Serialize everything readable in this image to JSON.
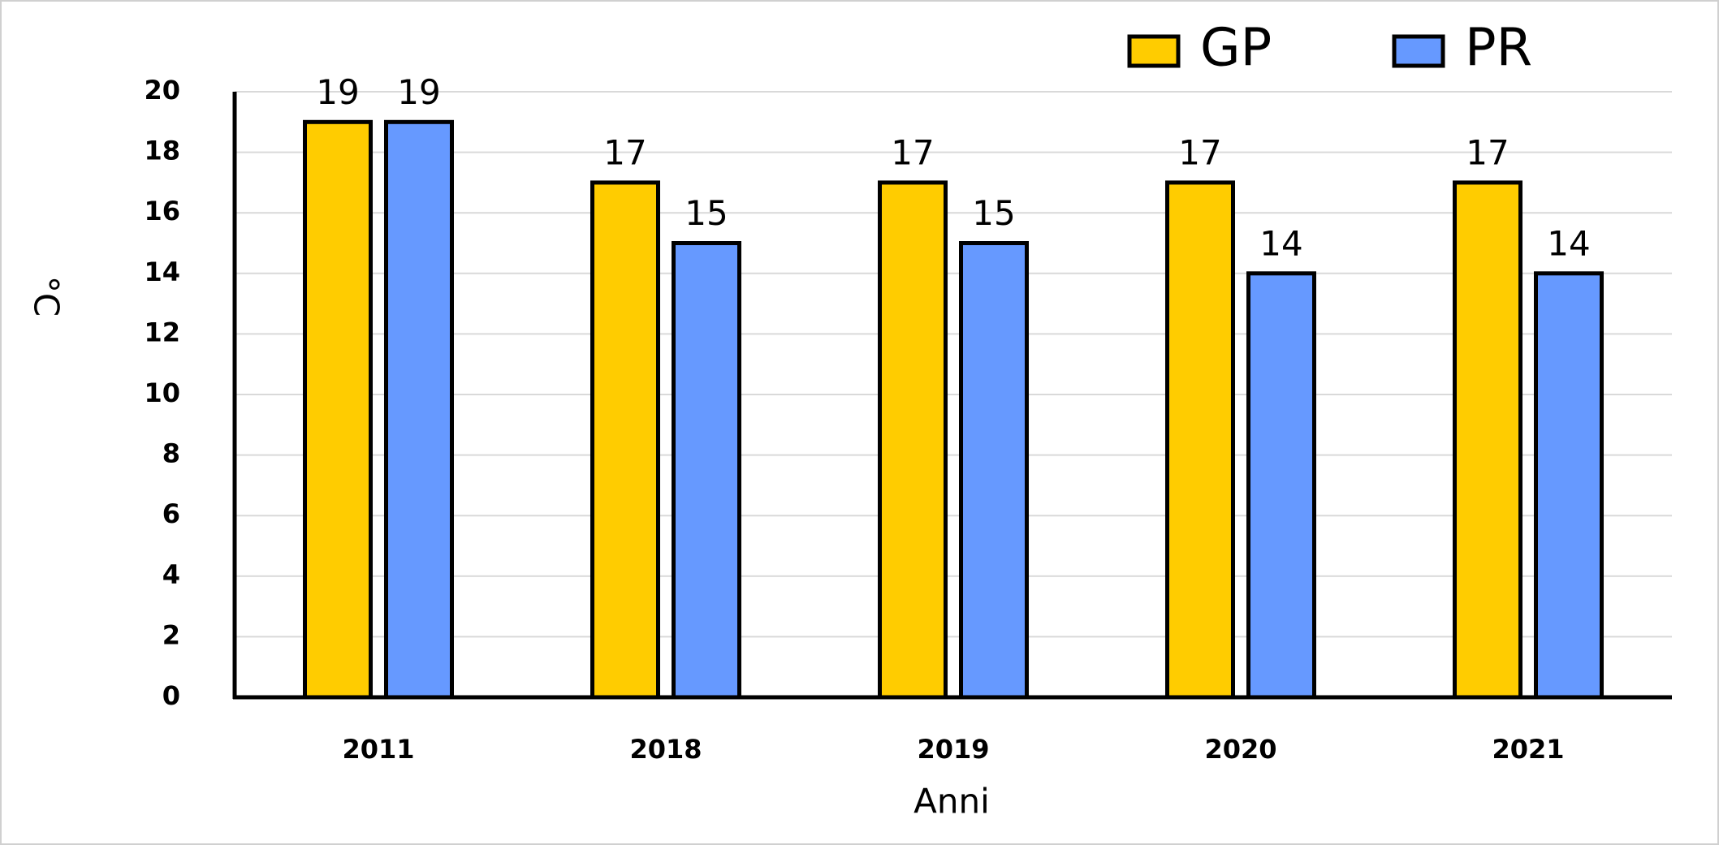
{
  "chart_data": {
    "type": "bar",
    "categories": [
      "2011",
      "2018",
      "2019",
      "2020",
      "2021"
    ],
    "series": [
      {
        "name": "GP",
        "color": "#ffcc00",
        "values": [
          19,
          17,
          17,
          17,
          17
        ]
      },
      {
        "name": "PR",
        "color": "#6699ff",
        "values": [
          19,
          15,
          15,
          14,
          14
        ]
      }
    ],
    "ylim": [
      0,
      20
    ],
    "yticks": [
      0,
      2,
      4,
      6,
      8,
      10,
      12,
      14,
      16,
      18,
      20
    ],
    "y_label": "°C",
    "x_label": "Anni",
    "grid": true,
    "legend": "upper right",
    "data_labels": true
  }
}
